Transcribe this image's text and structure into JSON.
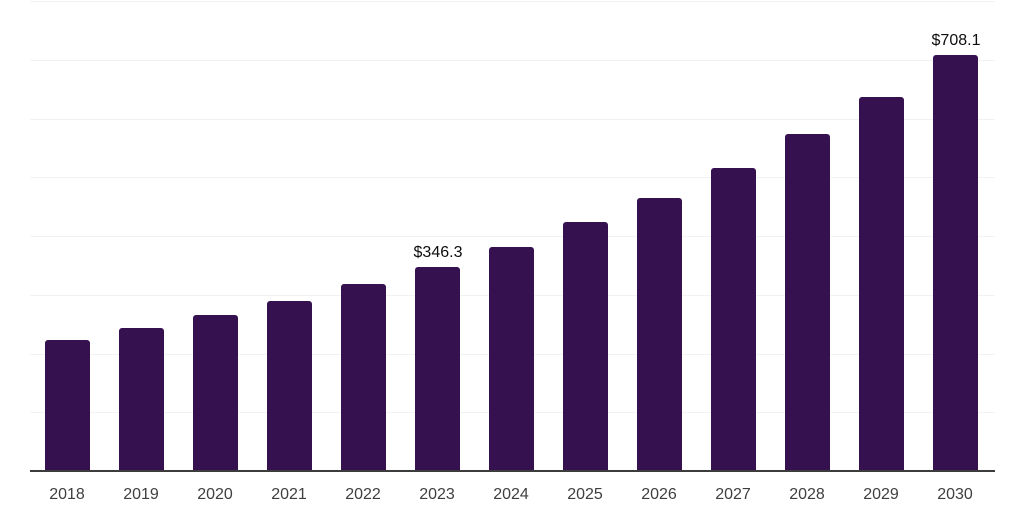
{
  "chart_data": {
    "type": "bar",
    "title": "",
    "xlabel": "",
    "ylabel": "",
    "categories": [
      "2018",
      "2019",
      "2020",
      "2021",
      "2022",
      "2023",
      "2024",
      "2025",
      "2026",
      "2027",
      "2028",
      "2029",
      "2030"
    ],
    "values": [
      221.6,
      242.0,
      264.6,
      288.5,
      317.9,
      346.3,
      379.9,
      422.4,
      464.3,
      514.8,
      573.2,
      636.1,
      708.1
    ],
    "point_labels": [
      "",
      "",
      "",
      "",
      "",
      "$346.3",
      "",
      "",
      "",
      "",
      "",
      "",
      "$708.1"
    ],
    "ylim": [
      0,
      800
    ],
    "grid_step": 100,
    "grid": true,
    "y_axis_tick_labels_visible": false,
    "legend_position": "none",
    "colors": {
      "bar": "#36114F",
      "gridline": "#F2F2F4",
      "axis_line": "#3C3C3C",
      "tick_label": "#3F3F3F",
      "value_label": "#0D0D0D",
      "background": "#FFFFFF"
    }
  }
}
